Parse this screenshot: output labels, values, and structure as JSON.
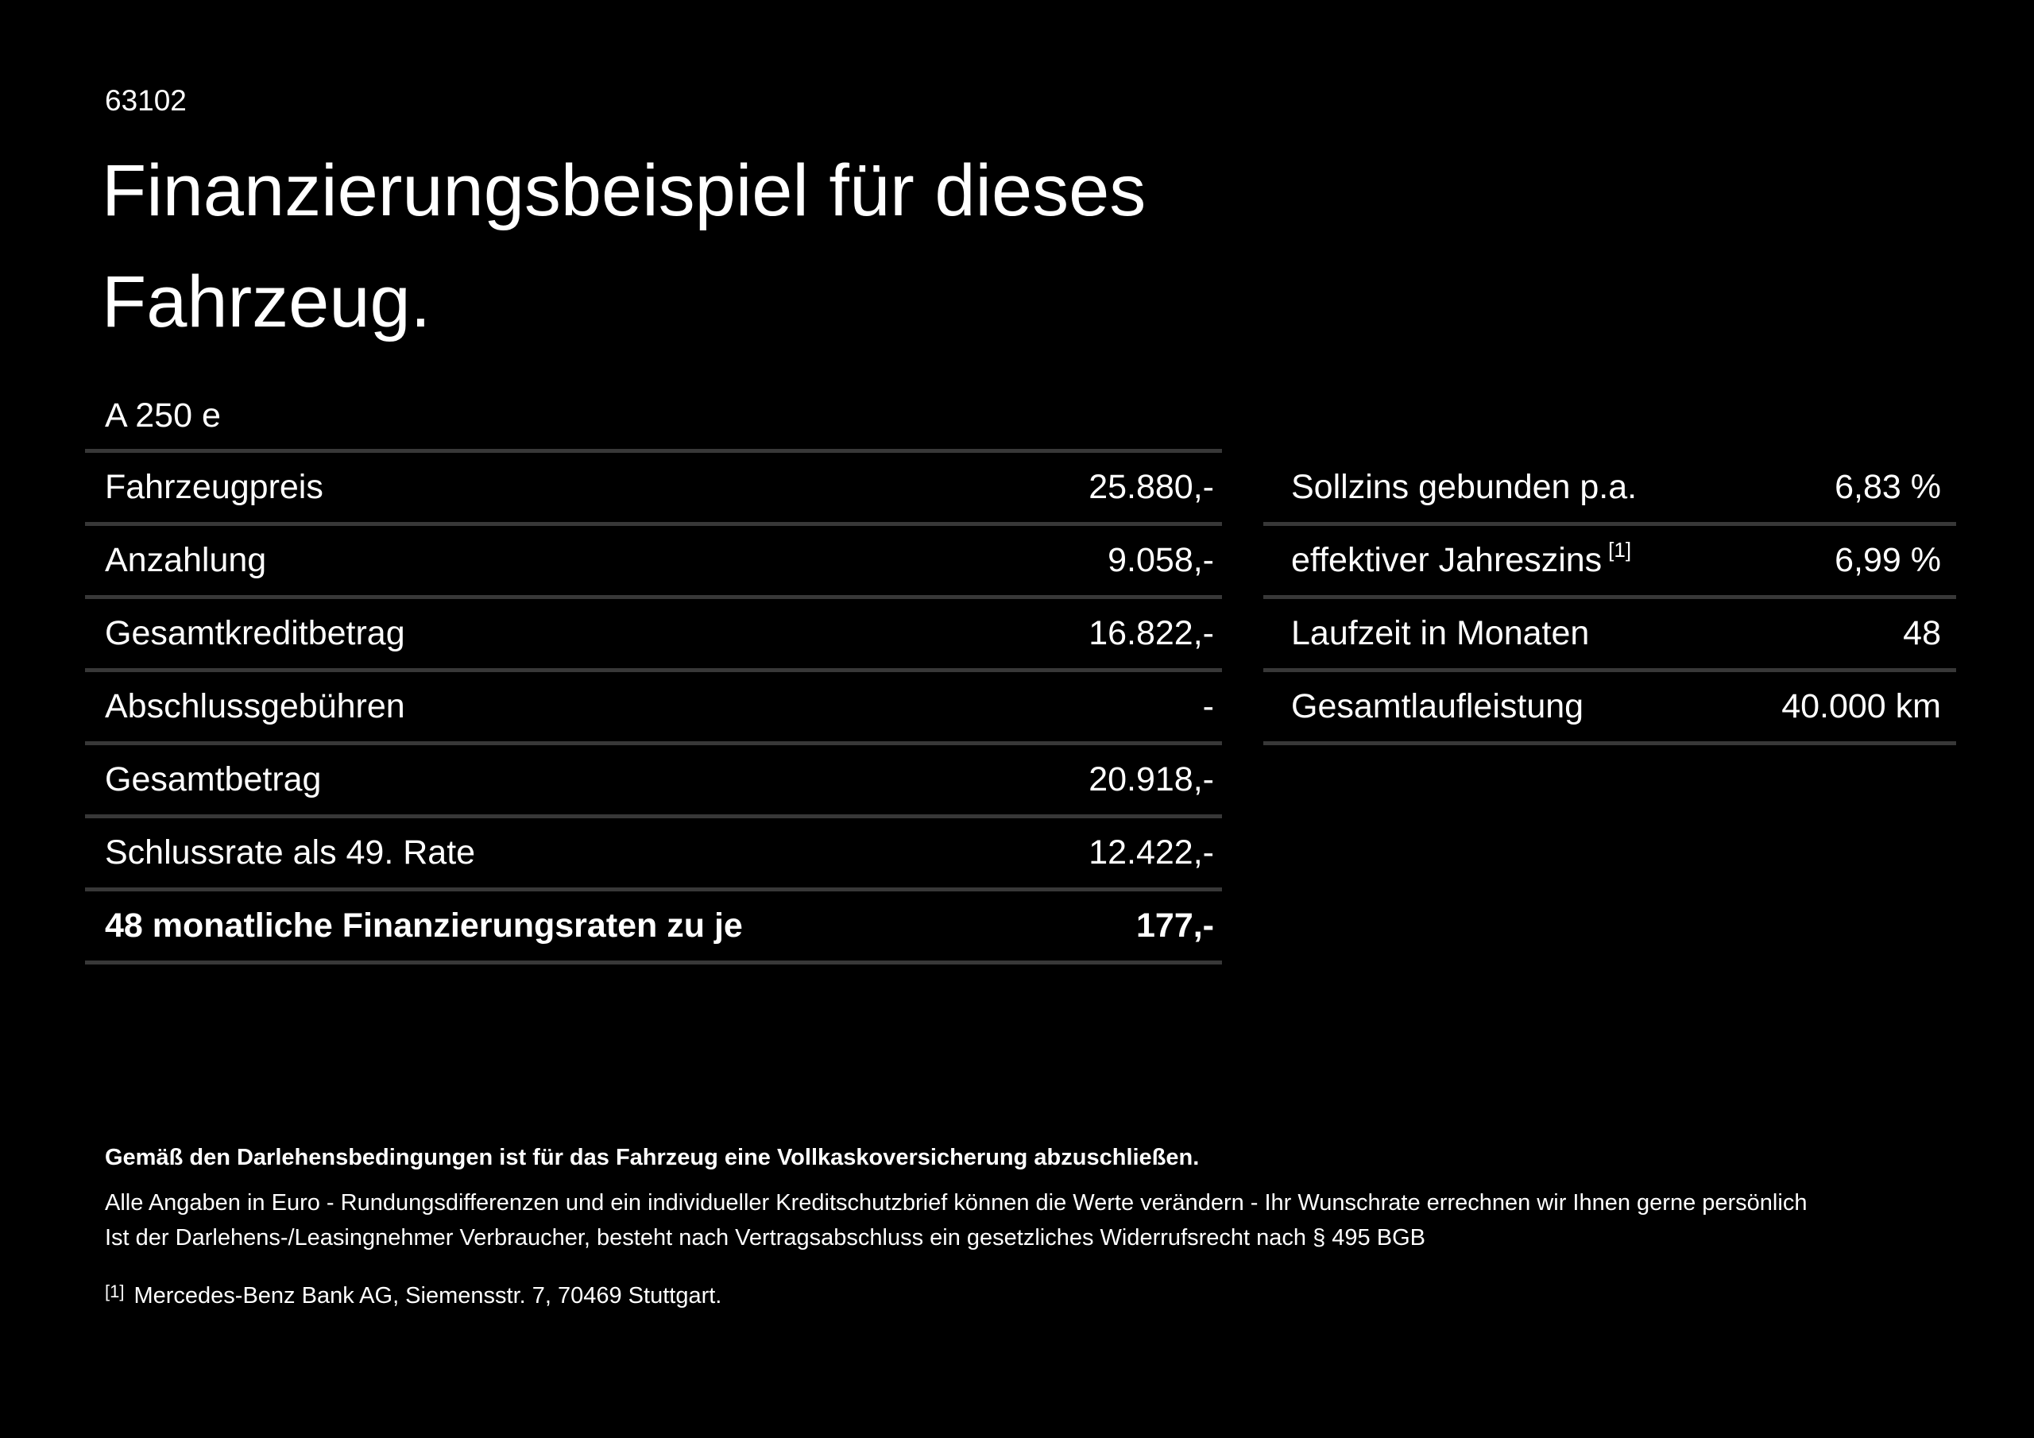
{
  "header": {
    "doc_number": "63102",
    "title_line1": "Finanzierungsbeispiel für dieses",
    "title_line2": "Fahrzeug.",
    "model": "A 250 e"
  },
  "finance_table": {
    "rows": [
      {
        "label": "Fahrzeugpreis",
        "value": "25.880,-",
        "emphasis": false
      },
      {
        "label": "Anzahlung",
        "value": "9.058,-",
        "emphasis": false
      },
      {
        "label": "Gesamtkreditbetrag",
        "value": "16.822,-",
        "emphasis": false
      },
      {
        "label": "Abschlussgebühren",
        "value": "-",
        "emphasis": false
      },
      {
        "label": "Gesamtbetrag",
        "value": "20.918,-",
        "emphasis": false
      },
      {
        "label": "Schlussrate als 49. Rate",
        "value": "12.422,-",
        "emphasis": false
      },
      {
        "label": "48 monatliche Finanzierungsraten zu je",
        "value": "177,-",
        "emphasis": true
      }
    ]
  },
  "conditions_table": {
    "rows": [
      {
        "label": "Sollzins gebunden p.a.",
        "sup": "",
        "value": "6,83 %"
      },
      {
        "label": "effektiver Jahreszins",
        "sup": "[1]",
        "value": "6,99 %"
      },
      {
        "label": "Laufzeit in Monaten",
        "sup": "",
        "value": "48"
      },
      {
        "label": "Gesamtlaufleistung",
        "sup": "",
        "value": "40.000 km"
      }
    ]
  },
  "footer": {
    "bold_note": "Gemäß den Darlehensbedingungen ist für das Fahrzeug eine Vollkaskoversicherung abzuschließen.",
    "note_line1": "Alle Angaben in Euro - Rundungsdifferenzen und ein individueller Kreditschutzbrief können die Werte verändern - Ihr Wunschrate errechnen wir Ihnen gerne persönlich",
    "note_line2": "Ist der Darlehens-/Leasingnehmer Verbraucher, besteht nach Vertragsabschluss ein gesetzliches Widerrufsrecht nach § 495 BGB",
    "footnote_marker": "[1]",
    "footnote_text": "Mercedes-Benz Bank AG, Siemensstr. 7, 70469 Stuttgart."
  },
  "colors": {
    "background": "#000000",
    "text": "#ffffff",
    "divider": "#383838"
  }
}
